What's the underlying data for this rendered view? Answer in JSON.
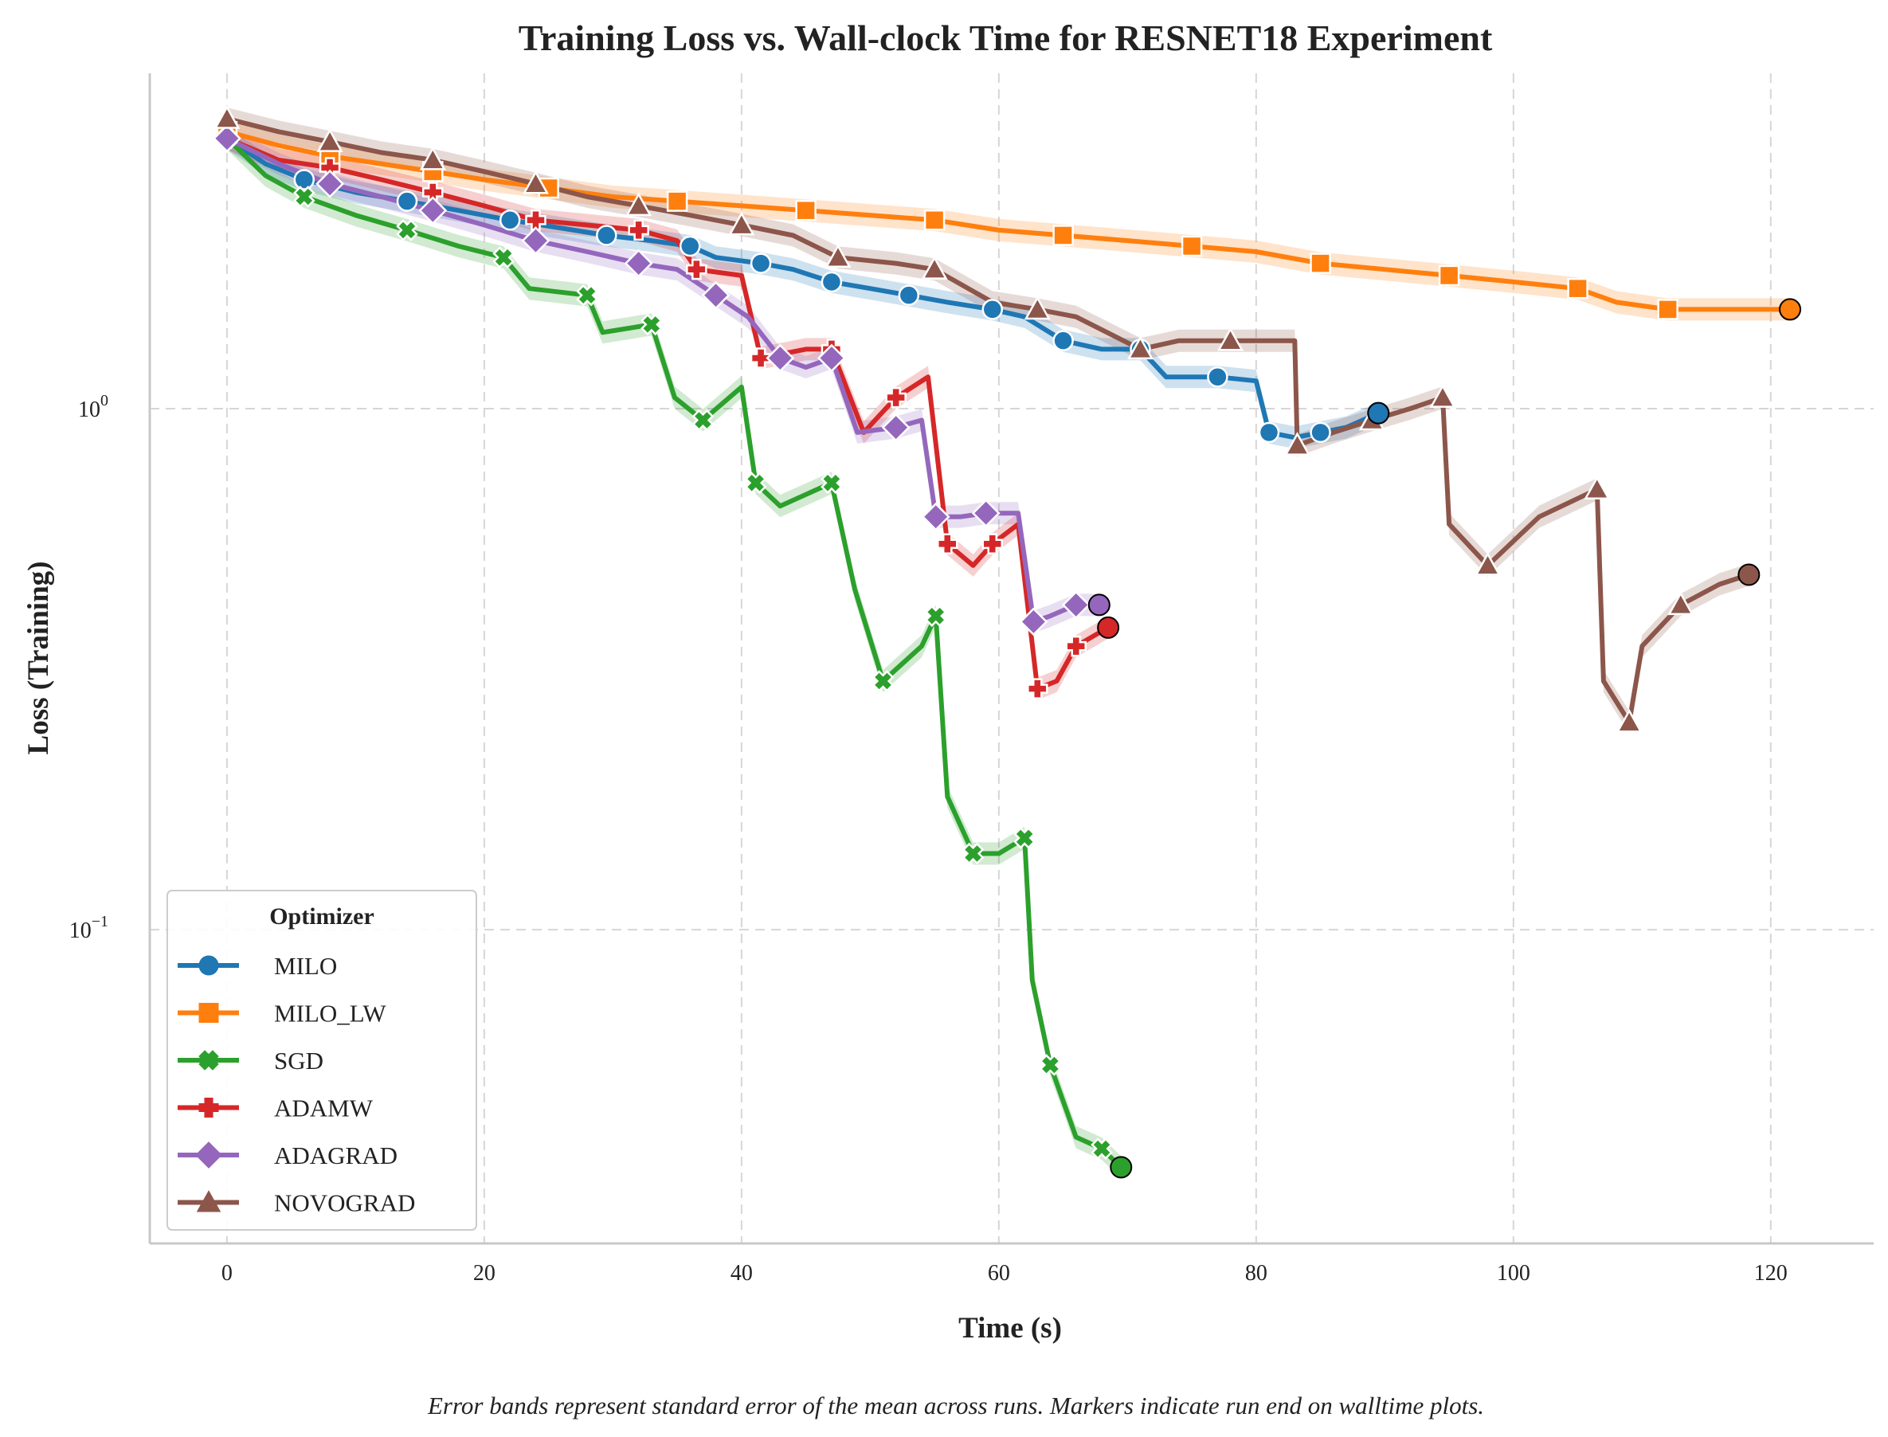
{
  "chart_data": {
    "type": "line",
    "title": "Training Loss vs. Wall-clock Time for RESNET18 Experiment",
    "xlabel": "Time (s)",
    "ylabel": "Loss (Training)",
    "xlim": [
      -6,
      128
    ],
    "ylim": [
      0.025,
      4.4
    ],
    "yscale": "log",
    "xticks": [
      0,
      20,
      40,
      60,
      80,
      100,
      120
    ],
    "yticks": [
      {
        "value": 0.1,
        "label_base": "10",
        "label_exp": "−1"
      },
      {
        "value": 1,
        "label_base": "10",
        "label_exp": "0"
      }
    ],
    "grid": true,
    "legend": {
      "title": "Optimizer",
      "placement": "lower-left"
    },
    "caption": "Error bands represent standard error of the mean across runs. Markers indicate run end on walltime plots.",
    "series": [
      {
        "name": "MILO",
        "color": "#1f77b4",
        "marker": "circle",
        "x": [
          0,
          3,
          6,
          10,
          14,
          18,
          22,
          26,
          29.5,
          33,
          36,
          38,
          41.5,
          44,
          47,
          50,
          53,
          56,
          59.5,
          62,
          65,
          68,
          71,
          73,
          77,
          80,
          81,
          83,
          85,
          87,
          89.5
        ],
        "y": [
          3.3,
          2.95,
          2.75,
          2.6,
          2.5,
          2.4,
          2.3,
          2.22,
          2.15,
          2.1,
          2.05,
          1.95,
          1.9,
          1.85,
          1.75,
          1.7,
          1.65,
          1.6,
          1.55,
          1.5,
          1.35,
          1.3,
          1.3,
          1.15,
          1.15,
          1.13,
          0.9,
          0.88,
          0.9,
          0.92,
          0.98
        ]
      },
      {
        "name": "MILO_LW",
        "color": "#ff7f0e",
        "marker": "square",
        "x": [
          0,
          4,
          8,
          12,
          16,
          20,
          25,
          30,
          35,
          40,
          45,
          50,
          55,
          60,
          65,
          70,
          75,
          80,
          85,
          90,
          95,
          100,
          105,
          108,
          112,
          116,
          121.5
        ],
        "y": [
          3.4,
          3.2,
          3.05,
          2.95,
          2.85,
          2.75,
          2.65,
          2.55,
          2.5,
          2.45,
          2.4,
          2.35,
          2.3,
          2.2,
          2.15,
          2.1,
          2.05,
          2.0,
          1.9,
          1.85,
          1.8,
          1.75,
          1.7,
          1.6,
          1.55,
          1.55,
          1.55
        ]
      },
      {
        "name": "SGD",
        "color": "#2ca02c",
        "marker": "x",
        "x": [
          0,
          3,
          6,
          10,
          14,
          18,
          21.5,
          23.5,
          28,
          29.2,
          33,
          34.8,
          37,
          40,
          41.1,
          43,
          47,
          48.8,
          51,
          54,
          55.1,
          56,
          58,
          60,
          62,
          62.6,
          64,
          66,
          68,
          69.5
        ],
        "y": [
          3.3,
          2.8,
          2.55,
          2.35,
          2.2,
          2.05,
          1.95,
          1.7,
          1.65,
          1.4,
          1.45,
          1.05,
          0.95,
          1.1,
          0.72,
          0.65,
          0.72,
          0.45,
          0.3,
          0.35,
          0.4,
          0.18,
          0.14,
          0.14,
          0.15,
          0.08,
          0.055,
          0.04,
          0.038,
          0.035
        ]
      },
      {
        "name": "ADAMW",
        "color": "#d62728",
        "marker": "plus",
        "x": [
          0,
          4,
          8,
          12,
          16,
          20,
          24,
          28,
          32,
          35,
          36.5,
          40,
          41.5,
          45,
          47,
          49.5,
          52,
          54.5,
          56,
          58,
          59.5,
          61.5,
          63,
          64.5,
          66,
          68.5
        ],
        "y": [
          3.3,
          3.0,
          2.9,
          2.75,
          2.6,
          2.45,
          2.3,
          2.25,
          2.2,
          2.1,
          1.85,
          1.8,
          1.25,
          1.3,
          1.3,
          0.9,
          1.05,
          1.15,
          0.55,
          0.5,
          0.55,
          0.6,
          0.29,
          0.3,
          0.35,
          0.38
        ]
      },
      {
        "name": "ADAGRAD",
        "color": "#9467bd",
        "marker": "diamond",
        "x": [
          0,
          4,
          8,
          12,
          16,
          20,
          24,
          28,
          32,
          35,
          38,
          40.5,
          43,
          45,
          47,
          49,
          52,
          54,
          55.1,
          57,
          59,
          61.5,
          62.7,
          64,
          66,
          67.8
        ],
        "y": [
          3.3,
          2.95,
          2.7,
          2.55,
          2.4,
          2.25,
          2.1,
          2.0,
          1.9,
          1.85,
          1.65,
          1.5,
          1.25,
          1.2,
          1.25,
          0.9,
          0.92,
          0.95,
          0.62,
          0.62,
          0.63,
          0.63,
          0.39,
          0.4,
          0.42,
          0.42
        ]
      },
      {
        "name": "NOVOGRAD",
        "color": "#8c564b",
        "marker": "triangle",
        "x": [
          0,
          4,
          8,
          12,
          16,
          20,
          24,
          28,
          32,
          36,
          40,
          44,
          47.5,
          52,
          55,
          59.5,
          63,
          66,
          71,
          74,
          78,
          83,
          83.2,
          86,
          89,
          92,
          94.5,
          95,
          98,
          102,
          106.5,
          107,
          109,
          110,
          113,
          116,
          118.3
        ],
        "y": [
          3.6,
          3.4,
          3.25,
          3.1,
          3.0,
          2.85,
          2.7,
          2.55,
          2.45,
          2.35,
          2.25,
          2.15,
          1.95,
          1.9,
          1.85,
          1.6,
          1.55,
          1.5,
          1.3,
          1.35,
          1.35,
          1.35,
          0.85,
          0.9,
          0.95,
          1.0,
          1.05,
          0.6,
          0.5,
          0.62,
          0.7,
          0.3,
          0.25,
          0.35,
          0.42,
          0.46,
          0.48
        ]
      }
    ]
  }
}
